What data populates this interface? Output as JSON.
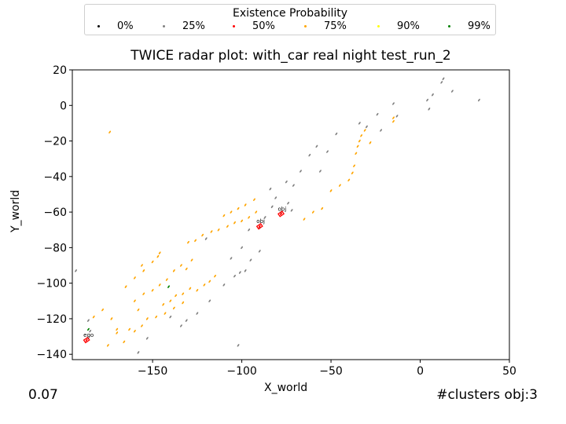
{
  "chart_data": {
    "type": "scatter",
    "title": "TWICE radar plot: with_car real night test_run_2",
    "xlabel": "X_world",
    "ylabel": "Y_world",
    "xlim": [
      -195,
      50
    ],
    "ylim": [
      -143,
      20
    ],
    "xticks": [
      -150,
      -100,
      -50,
      0,
      50
    ],
    "yticks": [
      20,
      0,
      -20,
      -40,
      -60,
      -80,
      -100,
      -120,
      -140
    ],
    "xtick_labels": [
      "−150",
      "−100",
      "−50",
      "0",
      "50"
    ],
    "ytick_labels": [
      "20",
      "0",
      "−20",
      "−40",
      "−60",
      "−80",
      "−100",
      "−120",
      "−140"
    ],
    "grid": false,
    "legend": {
      "title": "Existence Probability",
      "placement": "top-center",
      "entries": [
        {
          "label": "0%",
          "color": "#000000"
        },
        {
          "label": "25%",
          "color": "#808080"
        },
        {
          "label": "50%",
          "color": "#ff0000"
        },
        {
          "label": "75%",
          "color": "#ffa500"
        },
        {
          "label": "90%",
          "color": "#ffff00"
        },
        {
          "label": "99%",
          "color": "#008000"
        }
      ]
    },
    "series": [
      {
        "name": "25%",
        "color": "#808080",
        "points": [
          [
            -193,
            -93
          ],
          [
            -185,
            -127
          ],
          [
            -186,
            -121
          ],
          [
            -158,
            -139
          ],
          [
            -153,
            -131
          ],
          [
            -140,
            -119
          ],
          [
            -134,
            -124
          ],
          [
            -131,
            -121
          ],
          [
            -125,
            -117
          ],
          [
            -118,
            -110
          ],
          [
            -110,
            -101
          ],
          [
            -104,
            -96
          ],
          [
            -101,
            -94
          ],
          [
            -98,
            -93
          ],
          [
            -95,
            -87
          ],
          [
            -90,
            -82
          ],
          [
            -106,
            -86
          ],
          [
            -100,
            -80
          ],
          [
            -120,
            -75
          ],
          [
            -96,
            -70
          ],
          [
            -90,
            -69
          ],
          [
            -87,
            -63
          ],
          [
            -83,
            -57
          ],
          [
            -78,
            -60
          ],
          [
            -74,
            -55
          ],
          [
            -71,
            -45
          ],
          [
            -75,
            -43
          ],
          [
            -67,
            -37
          ],
          [
            -62,
            -28
          ],
          [
            -58,
            -23
          ],
          [
            -52,
            -26
          ],
          [
            -47,
            -16
          ],
          [
            -30,
            -12
          ],
          [
            -24,
            -5
          ],
          [
            -22,
            -14
          ],
          [
            -15,
            1
          ],
          [
            -13,
            -6
          ],
          [
            4,
            3
          ],
          [
            5,
            -2
          ],
          [
            7,
            6
          ],
          [
            12,
            13
          ],
          [
            13,
            15
          ],
          [
            18,
            8
          ],
          [
            33,
            3
          ],
          [
            -102,
            -135
          ],
          [
            -72,
            -59
          ],
          [
            -81,
            -52
          ],
          [
            -84,
            -47
          ],
          [
            -56,
            -37
          ],
          [
            -34,
            -10
          ]
        ]
      },
      {
        "name": "50%",
        "color": "#ff0000",
        "points": [
          [
            -187,
            -132
          ],
          [
            -90,
            -68
          ],
          [
            -78,
            -61
          ]
        ]
      },
      {
        "name": "75%",
        "color": "#ffa500",
        "points": [
          [
            -174,
            -15
          ],
          [
            -183,
            -119
          ],
          [
            -178,
            -115
          ],
          [
            -173,
            -120
          ],
          [
            -170,
            -126
          ],
          [
            -166,
            -133
          ],
          [
            -160,
            -127
          ],
          [
            -175,
            -135
          ],
          [
            -165,
            -102
          ],
          [
            -160,
            -97
          ],
          [
            -155,
            -93
          ],
          [
            -150,
            -88
          ],
          [
            -146,
            -83
          ],
          [
            -160,
            -110
          ],
          [
            -155,
            -106
          ],
          [
            -150,
            -104
          ],
          [
            -146,
            -101
          ],
          [
            -142,
            -98
          ],
          [
            -138,
            -93
          ],
          [
            -134,
            -90
          ],
          [
            -131,
            -92
          ],
          [
            -128,
            -87
          ],
          [
            -144,
            -112
          ],
          [
            -140,
            -110
          ],
          [
            -137,
            -107
          ],
          [
            -133,
            -106
          ],
          [
            -129,
            -103
          ],
          [
            -125,
            -104
          ],
          [
            -121,
            -101
          ],
          [
            -118,
            -99
          ],
          [
            -115,
            -96
          ],
          [
            -158,
            -115
          ],
          [
            -153,
            -120
          ],
          [
            -148,
            -119
          ],
          [
            -143,
            -117
          ],
          [
            -138,
            -114
          ],
          [
            -133,
            -111
          ],
          [
            -170,
            -128
          ],
          [
            -163,
            -126
          ],
          [
            -156,
            -124
          ],
          [
            -130,
            -77
          ],
          [
            -126,
            -76
          ],
          [
            -122,
            -73
          ],
          [
            -117,
            -71
          ],
          [
            -113,
            -70
          ],
          [
            -108,
            -68
          ],
          [
            -104,
            -66
          ],
          [
            -100,
            -65
          ],
          [
            -96,
            -63
          ],
          [
            -92,
            -60
          ],
          [
            -110,
            -62
          ],
          [
            -106,
            -60
          ],
          [
            -102,
            -58
          ],
          [
            -98,
            -56
          ],
          [
            -93,
            -53
          ],
          [
            -65,
            -64
          ],
          [
            -60,
            -60
          ],
          [
            -55,
            -58
          ],
          [
            -50,
            -48
          ],
          [
            -45,
            -45
          ],
          [
            -40,
            -42
          ],
          [
            -38,
            -38
          ],
          [
            -37,
            -34
          ],
          [
            -36,
            -27
          ],
          [
            -35,
            -23
          ],
          [
            -34,
            -20
          ],
          [
            -33,
            -17
          ],
          [
            -31,
            -14
          ],
          [
            -28,
            -21
          ],
          [
            -15,
            -9
          ],
          [
            -15,
            -7
          ],
          [
            -147,
            -85
          ],
          [
            -156,
            -90
          ]
        ]
      },
      {
        "name": "99%",
        "color": "#008000",
        "points": [
          [
            -186,
            -126
          ],
          [
            -141,
            -102
          ]
        ]
      }
    ],
    "object_boxes": [
      {
        "x": -187,
        "y": -132,
        "label": "ego"
      },
      {
        "x": -90,
        "y": -68,
        "label": "obj"
      },
      {
        "x": -78,
        "y": -61,
        "label": "obj"
      }
    ]
  },
  "footer": {
    "time": "0.07",
    "clusters": "#clusters obj:3"
  }
}
